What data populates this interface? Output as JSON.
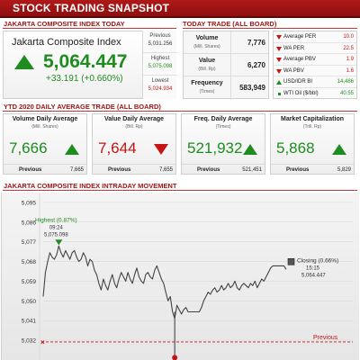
{
  "banner": {
    "title": "STOCK TRADING SNAPSHOT"
  },
  "sections": {
    "jci": "JAKARTA COMPOSITE INDEX TODAY",
    "today_trade": "TODAY TRADE (ALL BOARD)",
    "ytd": "YTD 2020 DAILY AVERAGE TRADE (ALL BOARD)",
    "intraday": "JAKARTA COMPOSITE INDEX INTRADAY MOVEMENT"
  },
  "jci": {
    "name": "Jakarta Composite Index",
    "value": "5,064.447",
    "change": "+33.191 (+0.660%)",
    "previous_label": "Previous",
    "previous_value": "5,031.256",
    "highest_label": "Highest",
    "highest_value": "5,075.098",
    "lowest_label": "Lowest",
    "lowest_value": "5,024.934",
    "up_color": "#1e8c1e",
    "down_color": "#c41414"
  },
  "today_trade": [
    {
      "label": "Volume",
      "sub": "(Mill. Shares)",
      "value": "7,776"
    },
    {
      "label": "Value",
      "sub": "(Bill. Rp)",
      "value": "6,270"
    },
    {
      "label": "Frequency",
      "sub": "(Times)",
      "value": "583,949"
    }
  ],
  "ratios": [
    {
      "label": "Average PER",
      "value": "10.0",
      "dir": "down",
      "color": "#c41414"
    },
    {
      "label": "WA PER",
      "value": "22.5",
      "dir": "down",
      "color": "#c41414"
    },
    {
      "label": "Average PBV",
      "value": "1.9",
      "dir": "down",
      "color": "#c41414"
    },
    {
      "label": "WA PBV",
      "value": "1.6",
      "dir": "down",
      "color": "#c41414"
    },
    {
      "label": "USD/IDR BI",
      "value": "14,486",
      "dir": "up",
      "color": "#1e8c1e"
    },
    {
      "label": "WTI Oil ($/bbl)",
      "value": "40.55",
      "dir": "flat",
      "color": "#1e8c1e"
    }
  ],
  "ytd_cards": [
    {
      "title": "Volume Daily Average",
      "sub": "(Mill. Shares)",
      "value": "7,666",
      "dir": "up",
      "color": "#1e8c1e",
      "prev_label": "Previous",
      "prev_value": "7,665"
    },
    {
      "title": "Value Daily Average",
      "sub": "(Bill. Rp)",
      "value": "7,644",
      "dir": "down",
      "color": "#c41414",
      "prev_label": "Previous",
      "prev_value": "7,655"
    },
    {
      "title": "Freq. Daily Average",
      "sub": "(Times)",
      "value": "521,932",
      "dir": "up",
      "color": "#1e8c1e",
      "prev_label": "Previous",
      "prev_value": "521,451"
    },
    {
      "title": "Market Capitalization",
      "sub": "(Trill. Rp)",
      "value": "5,868",
      "dir": "up",
      "color": "#1e8c1e",
      "prev_label": "Previous",
      "prev_value": "5,829"
    }
  ],
  "chart_data": {
    "type": "line",
    "title": "JAKARTA COMPOSITE INDEX INTRADAY MOVEMENT",
    "xlabel": "",
    "ylabel": "",
    "ylim": [
      5023,
      5097
    ],
    "y_ticks": [
      "5,095",
      "5,086",
      "5,077",
      "5,068",
      "5,059",
      "5,050",
      "5,041",
      "5,032"
    ],
    "y_tick_values": [
      5095,
      5086,
      5077,
      5068,
      5059,
      5050,
      5041,
      5032
    ],
    "grid": true,
    "series": [
      {
        "values": [
          5052,
          5063,
          5068,
          5072,
          5070,
          5069,
          5071,
          5075.1,
          5072,
          5070,
          5073,
          5071,
          5069,
          5072,
          5073,
          5070,
          5068,
          5069,
          5072,
          5070,
          5066,
          5069,
          5068,
          5064,
          5062,
          5058,
          5055,
          5060,
          5057,
          5055,
          5059,
          5062,
          5058,
          5056,
          5060,
          5063,
          5061,
          5059,
          5063,
          5060,
          5058,
          5062,
          5065,
          5061,
          5059,
          5058,
          5062,
          5063,
          5061,
          5060,
          5064,
          5066,
          5063,
          5060,
          5058,
          5054,
          5050,
          5052,
          5045,
          5042,
          5048,
          5046,
          5044,
          5046,
          5047,
          5045,
          5045,
          5045,
          5045,
          5045,
          5045,
          5047,
          5050,
          5052,
          5054,
          5053,
          5055,
          5056,
          5054,
          5055,
          5057,
          5055,
          5056,
          5058,
          5056,
          5057,
          5059,
          5056,
          5055,
          5057,
          5058,
          5057,
          5056,
          5058,
          5057,
          5059,
          5056,
          5058,
          5060,
          5059,
          5061,
          5063,
          5065,
          5066,
          5066,
          5066,
          5066,
          5066,
          5066,
          5064.4
        ]
      }
    ],
    "reference_line": {
      "label": "Previous",
      "value": 5031.256
    },
    "annotations": [
      {
        "label": "Highest (0.87%)",
        "time": "09:24",
        "value": "5,075.098"
      },
      {
        "label": "Closing (0.66%)",
        "time": "15:15",
        "value": "5,064.447"
      }
    ],
    "low_marker_value": 5024.9
  }
}
